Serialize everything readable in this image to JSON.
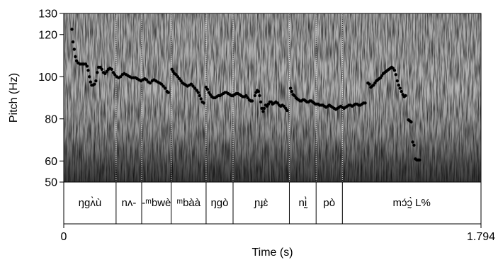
{
  "chart_data": {
    "type": "scatter",
    "title": "",
    "xlabel": "Time (s)",
    "ylabel": "Pitch (Hz)",
    "xlim": [
      0,
      1.794
    ],
    "ylim": [
      50,
      130
    ],
    "x_ticks": [
      {
        "value": 0,
        "label": "0"
      },
      {
        "value": 1.794,
        "label": "1.794"
      }
    ],
    "y_ticks": [
      {
        "value": 50,
        "label": "50"
      },
      {
        "value": 60,
        "label": "60"
      },
      {
        "value": 80,
        "label": "80"
      },
      {
        "value": 100,
        "label": "100"
      },
      {
        "value": 120,
        "label": "120"
      },
      {
        "value": 130,
        "label": "130"
      }
    ],
    "background": "spectrogram",
    "series": [
      {
        "points": [
          [
            0.035,
            122.5
          ],
          [
            0.04,
            116.5
          ],
          [
            0.045,
            113
          ],
          [
            0.05,
            109.5
          ],
          [
            0.055,
            107.5
          ],
          [
            0.062,
            106.5
          ],
          [
            0.07,
            106
          ],
          [
            0.078,
            106
          ],
          [
            0.086,
            106
          ],
          [
            0.094,
            106
          ],
          [
            0.1,
            105
          ],
          [
            0.105,
            103
          ],
          [
            0.11,
            100
          ],
          [
            0.115,
            97.5
          ],
          [
            0.12,
            96
          ],
          [
            0.126,
            96
          ],
          [
            0.132,
            96.5
          ],
          [
            0.138,
            98
          ],
          [
            0.144,
            102
          ],
          [
            0.15,
            104.5
          ],
          [
            0.157,
            104.5
          ],
          [
            0.164,
            103.5
          ],
          [
            0.171,
            102
          ],
          [
            0.178,
            101.5
          ],
          [
            0.185,
            102.5
          ],
          [
            0.192,
            103.5
          ],
          [
            0.199,
            104
          ],
          [
            0.206,
            103.5
          ],
          [
            0.213,
            102
          ],
          [
            0.22,
            101
          ],
          [
            0.228,
            100
          ],
          [
            0.236,
            99.5
          ],
          [
            0.244,
            100
          ],
          [
            0.252,
            101
          ],
          [
            0.26,
            101.5
          ],
          [
            0.268,
            101
          ],
          [
            0.276,
            100.5
          ],
          [
            0.284,
            100
          ],
          [
            0.292,
            99.5
          ],
          [
            0.3,
            99.5
          ],
          [
            0.308,
            99.5
          ],
          [
            0.316,
            99
          ],
          [
            0.324,
            98.5
          ],
          [
            0.332,
            98
          ],
          [
            0.34,
            98.5
          ],
          [
            0.348,
            99
          ],
          [
            0.356,
            98.5
          ],
          [
            0.364,
            97.5
          ],
          [
            0.372,
            97
          ],
          [
            0.38,
            98
          ],
          [
            0.388,
            98.5
          ],
          [
            0.396,
            98
          ],
          [
            0.404,
            97.5
          ],
          [
            0.412,
            97
          ],
          [
            0.42,
            96.5
          ],
          [
            0.428,
            95.5
          ],
          [
            0.436,
            94.5
          ],
          [
            0.444,
            93
          ],
          [
            0.45,
            92.5
          ],
          [
            0.465,
            103.5
          ],
          [
            0.47,
            102.5
          ],
          [
            0.476,
            101.5
          ],
          [
            0.483,
            101
          ],
          [
            0.49,
            100
          ],
          [
            0.497,
            99
          ],
          [
            0.504,
            98
          ],
          [
            0.511,
            97
          ],
          [
            0.518,
            96.5
          ],
          [
            0.525,
            96
          ],
          [
            0.532,
            95.5
          ],
          [
            0.54,
            96
          ],
          [
            0.548,
            96.5
          ],
          [
            0.556,
            95.5
          ],
          [
            0.564,
            94.5
          ],
          [
            0.572,
            93.5
          ],
          [
            0.578,
            92.5
          ],
          [
            0.584,
            91
          ],
          [
            0.59,
            89.5
          ],
          [
            0.596,
            88
          ],
          [
            0.602,
            87.5
          ],
          [
            0.612,
            95
          ],
          [
            0.618,
            94
          ],
          [
            0.624,
            92.5
          ],
          [
            0.63,
            91.5
          ],
          [
            0.637,
            90.5
          ],
          [
            0.644,
            90
          ],
          [
            0.651,
            90
          ],
          [
            0.658,
            90.5
          ],
          [
            0.665,
            91
          ],
          [
            0.672,
            91
          ],
          [
            0.679,
            91.5
          ],
          [
            0.686,
            92
          ],
          [
            0.693,
            92.5
          ],
          [
            0.7,
            92.5
          ],
          [
            0.707,
            92
          ],
          [
            0.714,
            91.5
          ],
          [
            0.721,
            91
          ],
          [
            0.728,
            91
          ],
          [
            0.735,
            91.5
          ],
          [
            0.742,
            92
          ],
          [
            0.749,
            92
          ],
          [
            0.756,
            91.5
          ],
          [
            0.763,
            91
          ],
          [
            0.77,
            90.5
          ],
          [
            0.777,
            90.5
          ],
          [
            0.784,
            91
          ],
          [
            0.791,
            90
          ],
          [
            0.798,
            89
          ],
          [
            0.804,
            88.5
          ],
          [
            0.81,
            88.5
          ],
          [
            0.822,
            91
          ],
          [
            0.827,
            92.5
          ],
          [
            0.832,
            93.5
          ],
          [
            0.837,
            93
          ],
          [
            0.842,
            91
          ],
          [
            0.847,
            88
          ],
          [
            0.852,
            85
          ],
          [
            0.857,
            83.5
          ],
          [
            0.862,
            85
          ],
          [
            0.868,
            86.5
          ],
          [
            0.874,
            86
          ],
          [
            0.88,
            87
          ],
          [
            0.886,
            88
          ],
          [
            0.892,
            88
          ],
          [
            0.898,
            87
          ],
          [
            0.905,
            87.5
          ],
          [
            0.912,
            88
          ],
          [
            0.919,
            87.5
          ],
          [
            0.926,
            86.5
          ],
          [
            0.933,
            86
          ],
          [
            0.94,
            86.5
          ],
          [
            0.947,
            86
          ],
          [
            0.954,
            85
          ],
          [
            0.96,
            84
          ],
          [
            0.975,
            94.5
          ],
          [
            0.98,
            93
          ],
          [
            0.986,
            91.5
          ],
          [
            0.992,
            91
          ],
          [
            0.998,
            90
          ],
          [
            1.004,
            89.5
          ],
          [
            1.01,
            89
          ],
          [
            1.016,
            88.5
          ],
          [
            1.022,
            88.5
          ],
          [
            1.028,
            89
          ],
          [
            1.034,
            89
          ],
          [
            1.04,
            88.5
          ],
          [
            1.046,
            88
          ],
          [
            1.052,
            88
          ],
          [
            1.058,
            88.5
          ],
          [
            1.064,
            88.5
          ],
          [
            1.07,
            88
          ],
          [
            1.076,
            87.5
          ],
          [
            1.082,
            87
          ],
          [
            1.088,
            87
          ],
          [
            1.094,
            87
          ],
          [
            1.1,
            86.5
          ],
          [
            1.107,
            86.5
          ],
          [
            1.114,
            86.5
          ],
          [
            1.121,
            86
          ],
          [
            1.128,
            85.5
          ],
          [
            1.135,
            86
          ],
          [
            1.142,
            86.5
          ],
          [
            1.149,
            86
          ],
          [
            1.156,
            85.5
          ],
          [
            1.163,
            85
          ],
          [
            1.17,
            84.5
          ],
          [
            1.177,
            85
          ],
          [
            1.184,
            85.5
          ],
          [
            1.191,
            86
          ],
          [
            1.198,
            85.5
          ],
          [
            1.205,
            85
          ],
          [
            1.212,
            85.5
          ],
          [
            1.219,
            86
          ],
          [
            1.226,
            86.5
          ],
          [
            1.233,
            86.5
          ],
          [
            1.24,
            86
          ],
          [
            1.247,
            86.5
          ],
          [
            1.254,
            87
          ],
          [
            1.261,
            87
          ],
          [
            1.268,
            86.5
          ],
          [
            1.275,
            86.5
          ],
          [
            1.282,
            87
          ],
          [
            1.289,
            87.5
          ],
          [
            1.296,
            87.5
          ],
          [
            1.308,
            97
          ],
          [
            1.314,
            96.5
          ],
          [
            1.32,
            95
          ],
          [
            1.326,
            95.5
          ],
          [
            1.332,
            96
          ],
          [
            1.338,
            97
          ],
          [
            1.344,
            98
          ],
          [
            1.35,
            98.5
          ],
          [
            1.356,
            99
          ],
          [
            1.362,
            99.5
          ],
          [
            1.368,
            100.5
          ],
          [
            1.374,
            101.5
          ],
          [
            1.38,
            102
          ],
          [
            1.386,
            102.5
          ],
          [
            1.392,
            103
          ],
          [
            1.398,
            103.5
          ],
          [
            1.404,
            104
          ],
          [
            1.41,
            104.5
          ],
          [
            1.416,
            104
          ],
          [
            1.422,
            103
          ],
          [
            1.428,
            101
          ],
          [
            1.434,
            98
          ],
          [
            1.44,
            96
          ],
          [
            1.446,
            94.5
          ],
          [
            1.452,
            93
          ],
          [
            1.458,
            91.5
          ],
          [
            1.464,
            90.5
          ],
          [
            1.47,
            91
          ],
          [
            1.482,
            79.5
          ],
          [
            1.488,
            79
          ],
          [
            1.494,
            78.5
          ],
          [
            1.5,
            69
          ],
          [
            1.506,
            67.5
          ],
          [
            1.512,
            61
          ],
          [
            1.518,
            60.5
          ],
          [
            1.524,
            60.5
          ],
          [
            1.53,
            60.5
          ]
        ]
      }
    ]
  },
  "tier": {
    "boundaries": [
      0,
      0.225,
      0.335,
      0.462,
      0.612,
      0.728,
      0.97,
      1.085,
      1.198,
      1.794
    ],
    "intervals": [
      {
        "label": "ŋgʌ̀ù"
      },
      {
        "label": "nʌ-"
      },
      {
        "label": "-ᵐbwè"
      },
      {
        "label": "ᵐbàà"
      },
      {
        "label": "ŋgò"
      },
      {
        "label": "ɲɟɛ̀"
      },
      {
        "label": "nḭ̀"
      },
      {
        "label": "pò"
      },
      {
        "label": "mɔ́ɔ̰̀  L%"
      }
    ]
  }
}
